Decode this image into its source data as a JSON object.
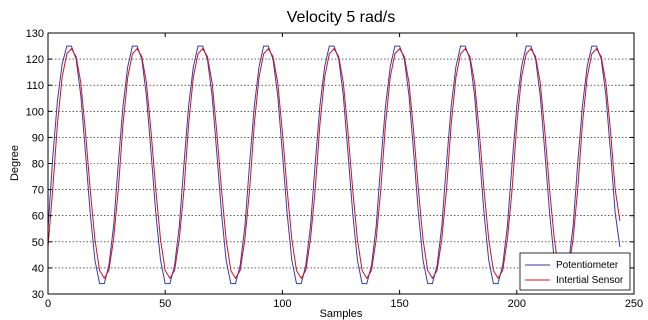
{
  "chart_data": {
    "type": "line",
    "title": "Velocity 5 rad/s",
    "xlabel": "Samples",
    "ylabel": "Degree",
    "xlim": [
      0,
      250
    ],
    "ylim": [
      30,
      130
    ],
    "xticks": [
      0,
      50,
      100,
      150,
      200,
      250
    ],
    "yticks": [
      30,
      40,
      50,
      60,
      70,
      80,
      90,
      100,
      110,
      120,
      130
    ],
    "grid": "dotted horizontal",
    "legend_position": "bottom-right",
    "series": [
      {
        "name": "Potentiometer",
        "color": "#3a3aa8",
        "x": [
          0,
          2,
          4,
          6,
          8,
          10,
          12,
          14,
          16,
          18,
          20,
          22,
          24,
          26,
          28,
          30,
          32,
          34,
          36,
          38,
          40,
          42,
          44,
          46,
          48,
          50,
          52,
          54,
          56,
          58,
          60,
          62,
          64,
          66,
          68,
          70,
          72,
          74,
          76,
          78,
          80,
          82,
          84,
          86,
          88,
          90,
          92,
          94,
          96,
          98,
          100,
          102,
          104,
          106,
          108,
          110,
          112,
          114,
          116,
          118,
          120,
          122,
          124,
          126,
          128,
          130,
          132,
          134,
          136,
          138,
          140,
          142,
          144,
          146,
          148,
          150,
          152,
          154,
          156,
          158,
          160,
          162,
          164,
          166,
          168,
          170,
          172,
          174,
          176,
          178,
          180,
          182,
          184,
          186,
          188,
          190,
          192,
          194,
          196,
          198,
          200,
          202,
          204,
          206,
          208,
          210,
          212,
          214,
          216,
          218,
          220,
          222,
          224,
          226,
          228,
          230,
          232,
          234,
          236,
          238,
          240,
          242,
          244
        ],
        "y": [
          55,
          82,
          104,
          118,
          125,
          125,
          120,
          106,
          84,
          61,
          43,
          34,
          34,
          41,
          56,
          80,
          102,
          117,
          125,
          125,
          120,
          106,
          84,
          61,
          43,
          34,
          34,
          41,
          56,
          80,
          102,
          117,
          125,
          125,
          120,
          106,
          84,
          61,
          43,
          34,
          34,
          41,
          56,
          80,
          102,
          117,
          125,
          125,
          120,
          106,
          84,
          61,
          43,
          34,
          34,
          41,
          56,
          80,
          102,
          117,
          125,
          125,
          120,
          106,
          84,
          61,
          43,
          34,
          34,
          41,
          56,
          80,
          102,
          117,
          125,
          125,
          120,
          106,
          84,
          61,
          43,
          34,
          34,
          41,
          56,
          80,
          102,
          117,
          125,
          125,
          120,
          106,
          84,
          61,
          43,
          34,
          34,
          41,
          56,
          80,
          102,
          117,
          125,
          125,
          120,
          106,
          84,
          61,
          43,
          34,
          34,
          41,
          56,
          80,
          102,
          117,
          125,
          125,
          120,
          106,
          84,
          61,
          48
        ]
      },
      {
        "name": "Intertial Sensor",
        "color": "#d01020",
        "x": [
          0,
          2,
          4,
          6,
          8,
          10,
          12,
          14,
          16,
          18,
          20,
          22,
          24,
          26,
          28,
          30,
          32,
          34,
          36,
          38,
          40,
          42,
          44,
          46,
          48,
          50,
          52,
          54,
          56,
          58,
          60,
          62,
          64,
          66,
          68,
          70,
          72,
          74,
          76,
          78,
          80,
          82,
          84,
          86,
          88,
          90,
          92,
          94,
          96,
          98,
          100,
          102,
          104,
          106,
          108,
          110,
          112,
          114,
          116,
          118,
          120,
          122,
          124,
          126,
          128,
          130,
          132,
          134,
          136,
          138,
          140,
          142,
          144,
          146,
          148,
          150,
          152,
          154,
          156,
          158,
          160,
          162,
          164,
          166,
          168,
          170,
          172,
          174,
          176,
          178,
          180,
          182,
          184,
          186,
          188,
          190,
          192,
          194,
          196,
          198,
          200,
          202,
          204,
          206,
          208,
          210,
          212,
          214,
          216,
          218,
          220,
          222,
          224,
          226,
          228,
          230,
          232,
          234,
          236,
          238,
          240,
          242,
          244
        ],
        "y": [
          48,
          70,
          95,
          113,
          122,
          124,
          121,
          111,
          92,
          70,
          51,
          39,
          36,
          39,
          51,
          70,
          95,
          113,
          122,
          124,
          121,
          111,
          92,
          70,
          51,
          39,
          36,
          39,
          51,
          70,
          95,
          113,
          122,
          124,
          121,
          111,
          92,
          70,
          51,
          39,
          36,
          39,
          51,
          70,
          95,
          113,
          122,
          124,
          121,
          111,
          92,
          70,
          51,
          39,
          36,
          39,
          51,
          70,
          95,
          113,
          122,
          124,
          121,
          111,
          92,
          70,
          51,
          39,
          36,
          39,
          51,
          70,
          95,
          113,
          122,
          124,
          121,
          111,
          92,
          70,
          51,
          39,
          36,
          39,
          51,
          70,
          95,
          113,
          122,
          124,
          121,
          111,
          92,
          70,
          51,
          39,
          36,
          39,
          51,
          70,
          95,
          113,
          122,
          124,
          121,
          111,
          92,
          70,
          51,
          39,
          36,
          39,
          51,
          70,
          95,
          113,
          122,
          124,
          121,
          111,
          92,
          70,
          58
        ]
      }
    ]
  }
}
